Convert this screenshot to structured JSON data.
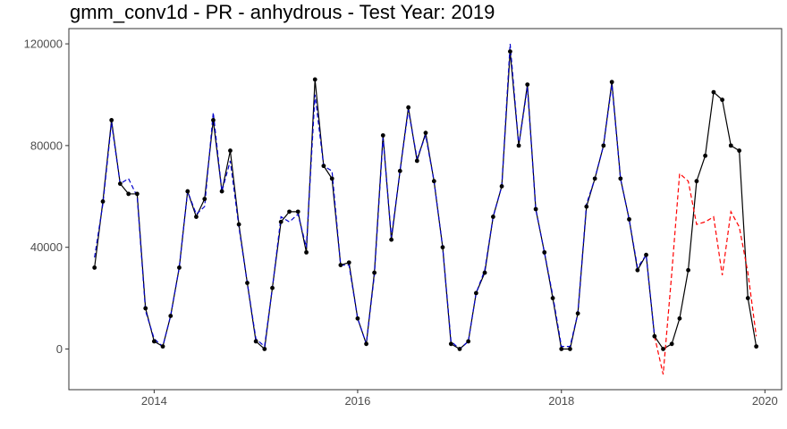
{
  "chart_data": {
    "type": "line",
    "title": "gmm_conv1d - PR - anhydrous - Test Year: 2019",
    "xlabel": "",
    "ylabel": "",
    "x_range": [
      "2013-03-01",
      "2020-03-01"
    ],
    "ylim": [
      -16000,
      126000
    ],
    "y_ticks": [
      {
        "value": 0,
        "label": "0"
      },
      {
        "value": 40000,
        "label": "40000"
      },
      {
        "value": 80000,
        "label": "80000"
      },
      {
        "value": 120000,
        "label": "120000"
      }
    ],
    "x_ticks": [
      {
        "value": "2014-01-01",
        "label": "2014"
      },
      {
        "value": "2016-01-01",
        "label": "2016"
      },
      {
        "value": "2018-01-01",
        "label": "2018"
      },
      {
        "value": "2020-01-01",
        "label": "2020"
      }
    ],
    "grid": false,
    "colors": {
      "actual": "#000000",
      "fitted": "#0000cc",
      "forecast": "#ff0000"
    },
    "series": [
      {
        "style": "solid-with-points",
        "color": "#000000",
        "x": [
          "2013-06",
          "2013-07",
          "2013-08",
          "2013-09",
          "2013-10",
          "2013-11",
          "2013-12",
          "2014-01",
          "2014-02",
          "2014-03",
          "2014-04",
          "2014-05",
          "2014-06",
          "2014-07",
          "2014-08",
          "2014-09",
          "2014-10",
          "2014-11",
          "2014-12",
          "2015-01",
          "2015-02",
          "2015-03",
          "2015-04",
          "2015-05",
          "2015-06",
          "2015-07",
          "2015-08",
          "2015-09",
          "2015-10",
          "2015-11",
          "2015-12",
          "2016-01",
          "2016-02",
          "2016-03",
          "2016-04",
          "2016-05",
          "2016-06",
          "2016-07",
          "2016-08",
          "2016-09",
          "2016-10",
          "2016-11",
          "2016-12",
          "2017-01",
          "2017-02",
          "2017-03",
          "2017-04",
          "2017-05",
          "2017-06",
          "2017-07",
          "2017-08",
          "2017-09",
          "2017-10",
          "2017-11",
          "2017-12",
          "2018-01",
          "2018-02",
          "2018-03",
          "2018-04",
          "2018-05",
          "2018-06",
          "2018-07",
          "2018-08",
          "2018-09",
          "2018-10",
          "2018-11",
          "2018-12",
          "2019-01",
          "2019-02",
          "2019-03",
          "2019-04",
          "2019-05",
          "2019-06",
          "2019-07",
          "2019-08",
          "2019-09",
          "2019-10",
          "2019-11",
          "2019-12"
        ],
        "y": [
          32000,
          58000,
          90000,
          65000,
          61000,
          61000,
          16000,
          3000,
          1000,
          13000,
          32000,
          62000,
          52000,
          59000,
          90000,
          62000,
          78000,
          49000,
          26000,
          3000,
          0,
          24000,
          50000,
          54000,
          54000,
          38000,
          106000,
          72000,
          67000,
          33000,
          34000,
          12000,
          2000,
          30000,
          84000,
          43000,
          70000,
          95000,
          74000,
          85000,
          66000,
          40000,
          2000,
          0,
          3000,
          22000,
          30000,
          52000,
          64000,
          117000,
          80000,
          104000,
          55000,
          38000,
          20000,
          0,
          0,
          14000,
          56000,
          67000,
          80000,
          105000,
          67000,
          51000,
          31000,
          37000,
          5000,
          0,
          2000,
          12000,
          31000,
          66000,
          76000,
          101000,
          98000,
          80000,
          78000,
          20000,
          1000
        ]
      },
      {
        "style": "dashed",
        "color": "#0000cc",
        "x": [
          "2013-06",
          "2013-07",
          "2013-08",
          "2013-09",
          "2013-10",
          "2013-11",
          "2013-12",
          "2014-01",
          "2014-02",
          "2014-03",
          "2014-04",
          "2014-05",
          "2014-06",
          "2014-07",
          "2014-08",
          "2014-09",
          "2014-10",
          "2014-11",
          "2014-12",
          "2015-01",
          "2015-02",
          "2015-03",
          "2015-04",
          "2015-05",
          "2015-06",
          "2015-07",
          "2015-08",
          "2015-09",
          "2015-10",
          "2015-11",
          "2015-12",
          "2016-01",
          "2016-02",
          "2016-03",
          "2016-04",
          "2016-05",
          "2016-06",
          "2016-07",
          "2016-08",
          "2016-09",
          "2016-10",
          "2016-11",
          "2016-12",
          "2017-01",
          "2017-02",
          "2017-03",
          "2017-04",
          "2017-05",
          "2017-06",
          "2017-07",
          "2017-08",
          "2017-09",
          "2017-10",
          "2017-11",
          "2017-12",
          "2018-01",
          "2018-02",
          "2018-03",
          "2018-04",
          "2018-05",
          "2018-06",
          "2018-07",
          "2018-08",
          "2018-09",
          "2018-10",
          "2018-11",
          "2018-12"
        ],
        "y": [
          36000,
          57000,
          89000,
          65000,
          67000,
          60000,
          15000,
          4000,
          1000,
          13000,
          32000,
          62000,
          53000,
          56000,
          93000,
          62000,
          74000,
          48000,
          26000,
          4000,
          1000,
          24000,
          52000,
          50000,
          53000,
          40000,
          100000,
          72000,
          70000,
          33000,
          33000,
          12000,
          2000,
          29000,
          83000,
          44000,
          70000,
          94000,
          75000,
          84000,
          66000,
          40000,
          3000,
          0,
          3000,
          22000,
          31000,
          52000,
          64000,
          120000,
          80000,
          103000,
          55000,
          38000,
          21000,
          1000,
          1000,
          14000,
          57000,
          67000,
          80000,
          104000,
          67000,
          51000,
          32000,
          37000,
          5000
        ]
      },
      {
        "style": "dashed",
        "color": "#ff0000",
        "x": [
          "2018-12",
          "2019-01",
          "2019-02",
          "2019-03",
          "2019-04",
          "2019-05",
          "2019-06",
          "2019-07",
          "2019-08",
          "2019-09",
          "2019-10",
          "2019-11",
          "2019-12"
        ],
        "y": [
          5000,
          -10000,
          30000,
          69000,
          66000,
          49000,
          50000,
          52000,
          29000,
          54000,
          48000,
          30000,
          5000
        ]
      }
    ]
  }
}
